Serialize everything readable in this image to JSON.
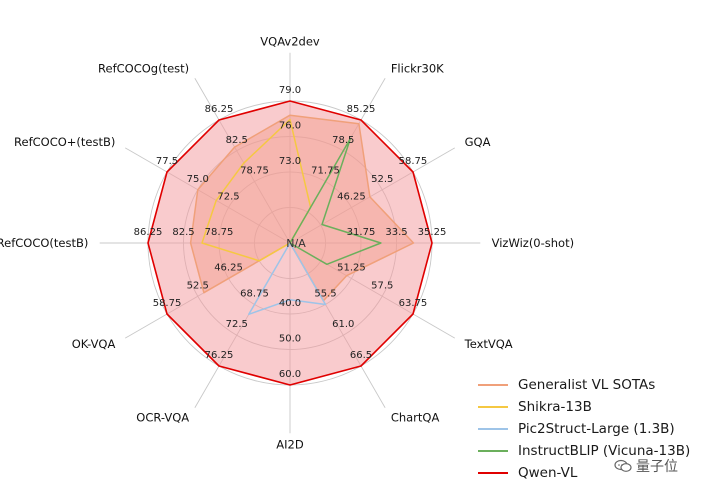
{
  "chart_data": {
    "type": "radar",
    "axes": [
      {
        "label": "VQAv2dev",
        "ticks": [
          "73.0",
          "76.0",
          "79.0"
        ]
      },
      {
        "label": "Flickr30K",
        "ticks": [
          "71.75",
          "78.5",
          "85.25"
        ]
      },
      {
        "label": "GQA",
        "ticks": [
          "46.25",
          "52.5",
          "58.75"
        ]
      },
      {
        "label": "VizWiz(0-shot)",
        "ticks": [
          "31.75",
          "33.5",
          "35.25"
        ]
      },
      {
        "label": "TextVQA",
        "ticks": [
          "51.25",
          "57.5",
          "63.75"
        ]
      },
      {
        "label": "ChartQA",
        "ticks": [
          "55.5",
          "61.0",
          "66.5"
        ]
      },
      {
        "label": "AI2D",
        "ticks": [
          "40.0",
          "50.0",
          "60.0"
        ]
      },
      {
        "label": "OCR-VQA",
        "ticks": [
          "68.75",
          "72.5",
          "76.25"
        ]
      },
      {
        "label": "OK-VQA",
        "ticks": [
          "46.25",
          "52.5",
          "58.75"
        ]
      },
      {
        "label": "RefCOCO(testB)",
        "ticks": [
          "78.75",
          "82.5",
          "86.25"
        ]
      },
      {
        "label": "RefCOCO+(testB)",
        "ticks": [
          "72.5",
          "75.0",
          "77.5"
        ]
      },
      {
        "label": "RefCOCOg(test)",
        "ticks": [
          "78.75",
          "82.5",
          "86.25"
        ]
      }
    ],
    "center_label": "N/A",
    "rings": [
      0.25,
      0.5,
      0.75,
      1.0
    ],
    "series": [
      {
        "name": "Generalist VL SOTAs",
        "color": "#F0A07A",
        "fill": "#F0A07A",
        "fill_opacity": 0.45,
        "values": [
          0.9,
          0.97,
          0.65,
          0.87,
          0.46,
          0.47,
          null,
          null,
          0.7,
          0.7,
          0.75,
          0.78
        ]
      },
      {
        "name": "Shikra-13B",
        "color": "#F5C842",
        "fill": null,
        "fill_opacity": 0,
        "values": [
          0.87,
          0.29,
          null,
          null,
          null,
          null,
          null,
          null,
          0.25,
          0.62,
          0.6,
          0.65
        ]
      },
      {
        "name": "Pic2Struct-Large (1.3B)",
        "color": "#9EC4E8",
        "fill": null,
        "fill_opacity": 0,
        "values": [
          null,
          null,
          null,
          null,
          null,
          0.5,
          0.4,
          0.58,
          null,
          null,
          null,
          null
        ]
      },
      {
        "name": "InstructBLIP (Vicuna-13B)",
        "color": "#6BAF5C",
        "fill": null,
        "fill_opacity": 0,
        "values": [
          null,
          0.85,
          0.26,
          0.64,
          0.3,
          null,
          null,
          null,
          null,
          null,
          null,
          null
        ]
      },
      {
        "name": "Qwen-VL",
        "color": "#E00000",
        "fill": "#F4989C",
        "fill_opacity": 0.5,
        "values": [
          1.0,
          1.0,
          1.0,
          1.0,
          1.0,
          1.0,
          1.0,
          1.0,
          1.0,
          1.0,
          1.0,
          1.0
        ]
      }
    ],
    "legend_position": "bottom-right"
  },
  "watermark": {
    "text": "量子位",
    "icon": "chat-bubbles-icon"
  }
}
